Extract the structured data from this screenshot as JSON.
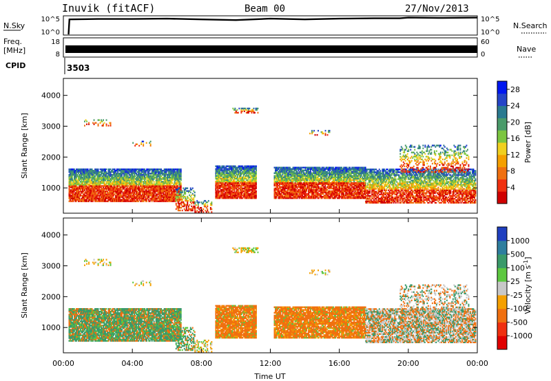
{
  "header": {
    "station": "Inuvik (fitACF)",
    "beam": "Beam 00",
    "date": "27/Nov/2013"
  },
  "colors": {
    "trace": "#000000",
    "frame": "#000000"
  },
  "chart_data": [
    {
      "id": "noise",
      "type": "line",
      "left_label": "N.Sky",
      "right_label": "N.Search",
      "left_ticks": [
        "10^5",
        "10^0"
      ],
      "right_ticks": [
        "10^5",
        "10^0"
      ],
      "ylim": [
        0,
        5
      ],
      "series": [
        {
          "values_desc": "N.Sky",
          "x": [
            0.3,
            0.35,
            2,
            4,
            6,
            8,
            10,
            12,
            14,
            16,
            18,
            19.5,
            20,
            22,
            24
          ],
          "y": [
            0.0,
            4.2,
            4.3,
            4.3,
            4.4,
            4.2,
            4.0,
            4.4,
            4.2,
            4.4,
            4.5,
            4.5,
            4.7,
            4.6,
            4.7
          ]
        }
      ]
    },
    {
      "id": "freq",
      "type": "line",
      "left_label": "Freq.",
      "left_unit": "[MHz]",
      "right_label": "Nave",
      "left_ticks": [
        "18",
        "8"
      ],
      "right_ticks": [
        "60",
        "0"
      ],
      "cpid_label": "CPID",
      "cpid_value": "3503",
      "ylim": [
        8,
        18
      ],
      "series": [
        {
          "x": [
            0.3,
            24
          ],
          "y": [
            11.2,
            11.2
          ]
        }
      ]
    },
    {
      "id": "power",
      "type": "heatmap",
      "ylabel": "Slant Range [km]",
      "yticks": [
        1000,
        2000,
        3000,
        4000
      ],
      "ylim": [
        180,
        4550
      ],
      "xlim": [
        0,
        24
      ],
      "colorbar": {
        "label": "Power [dB]",
        "ticks": [
          "4",
          "8",
          "12",
          "16",
          "20",
          "24",
          "28"
        ],
        "range": [
          0,
          30
        ],
        "colors": [
          "#0018f0",
          "#2545c8",
          "#2a7a90",
          "#4a9b6a",
          "#7cc640",
          "#f0d020",
          "#f5a000",
          "#f07010",
          "#f03010",
          "#d00000"
        ]
      }
    },
    {
      "id": "velocity",
      "type": "heatmap",
      "ylabel": "Slant Range [km]",
      "xlabel": "Time UT",
      "yticks": [
        1000,
        2000,
        3000,
        4000
      ],
      "ylim": [
        180,
        4550
      ],
      "xlim": [
        0,
        24
      ],
      "xticks": [
        "00:00",
        "04:00",
        "08:00",
        "12:00",
        "16:00",
        "20:00",
        "00:00"
      ],
      "colorbar": {
        "label": "Velocity [m s^-1]",
        "ticks": [
          "1000",
          "500",
          "100",
          "25",
          "-25",
          "-100",
          "-500",
          "-1000"
        ],
        "colors": [
          "#1f3fbf",
          "#2e7e9e",
          "#3a9a6a",
          "#5dc840",
          "#c8c8c8",
          "#f5a000",
          "#f07010",
          "#f03010",
          "#e00000"
        ]
      }
    }
  ]
}
